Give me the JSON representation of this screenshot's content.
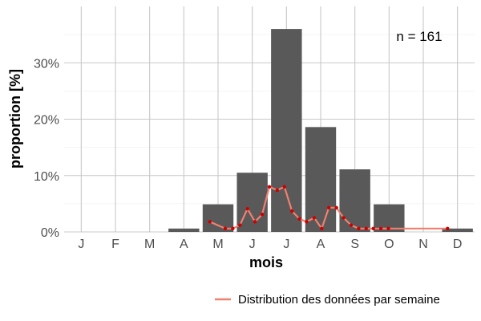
{
  "chart_data": {
    "type": "bar",
    "categories": [
      "J",
      "F",
      "M",
      "A",
      "M",
      "J",
      "J",
      "A",
      "S",
      "O",
      "N",
      "D"
    ],
    "values": [
      0,
      0,
      0,
      0.6,
      4.9,
      10.5,
      36.0,
      18.6,
      11.1,
      4.9,
      0,
      0.6
    ],
    "xlabel": "mois",
    "ylabel": "proportion [%]",
    "ylim": [
      0,
      40
    ],
    "yticks": [
      0,
      10,
      20,
      30
    ],
    "ytick_labels": [
      "0%",
      "10%",
      "20%",
      "30%"
    ],
    "annotation": "n = 161",
    "grid": true,
    "bar_color": "#595959",
    "line_color": "#f08070",
    "point_color": "#cc0000",
    "series": [
      {
        "name": "Distribution des données par semaine",
        "type": "line",
        "x": [
          4.76,
          5.21,
          5.43,
          5.64,
          5.86,
          6.08,
          6.29,
          6.5,
          6.73,
          6.94,
          7.16,
          7.38,
          7.59,
          7.81,
          8.03,
          8.24,
          8.46,
          8.67,
          8.89,
          9.11,
          9.33,
          9.54,
          9.76,
          9.98,
          11.71
        ],
        "values": [
          1.8,
          0.6,
          0.6,
          1.2,
          4.1,
          1.8,
          3.1,
          8.0,
          7.4,
          8.0,
          3.7,
          2.3,
          1.8,
          2.5,
          0.6,
          4.3,
          4.3,
          2.5,
          1.2,
          0.6,
          0.6,
          0.6,
          0.6,
          0.6,
          0.6
        ]
      }
    ],
    "legend_position": "bottom-right"
  }
}
